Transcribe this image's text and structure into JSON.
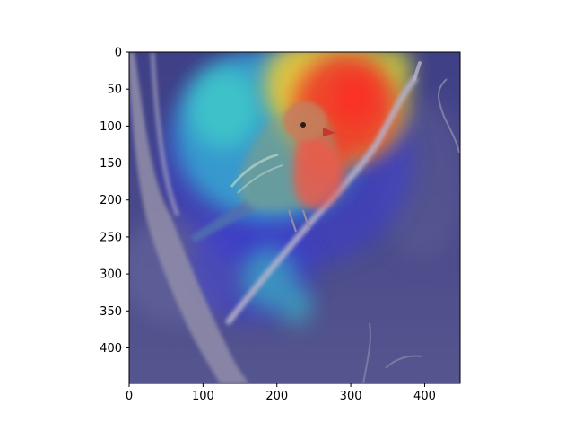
{
  "image": {
    "subject": "bird-on-branch-heatmap-overlay",
    "description_colors": {
      "background": "#4a4a8e",
      "heat_low": "#3b3bbf",
      "heat_mid": "#33cc99",
      "heat_high": "#ff3b2f",
      "heat_peak": "#ff8a00",
      "bird_body": "#c98e78",
      "branch": "#a7a4b8"
    }
  },
  "axes": {
    "x_ticks": [
      "0",
      "100",
      "200",
      "300",
      "400"
    ],
    "y_ticks": [
      "0",
      "50",
      "100",
      "150",
      "200",
      "250",
      "300",
      "350",
      "400"
    ],
    "x_range": [
      0,
      448
    ],
    "y_range": [
      0,
      448
    ]
  }
}
